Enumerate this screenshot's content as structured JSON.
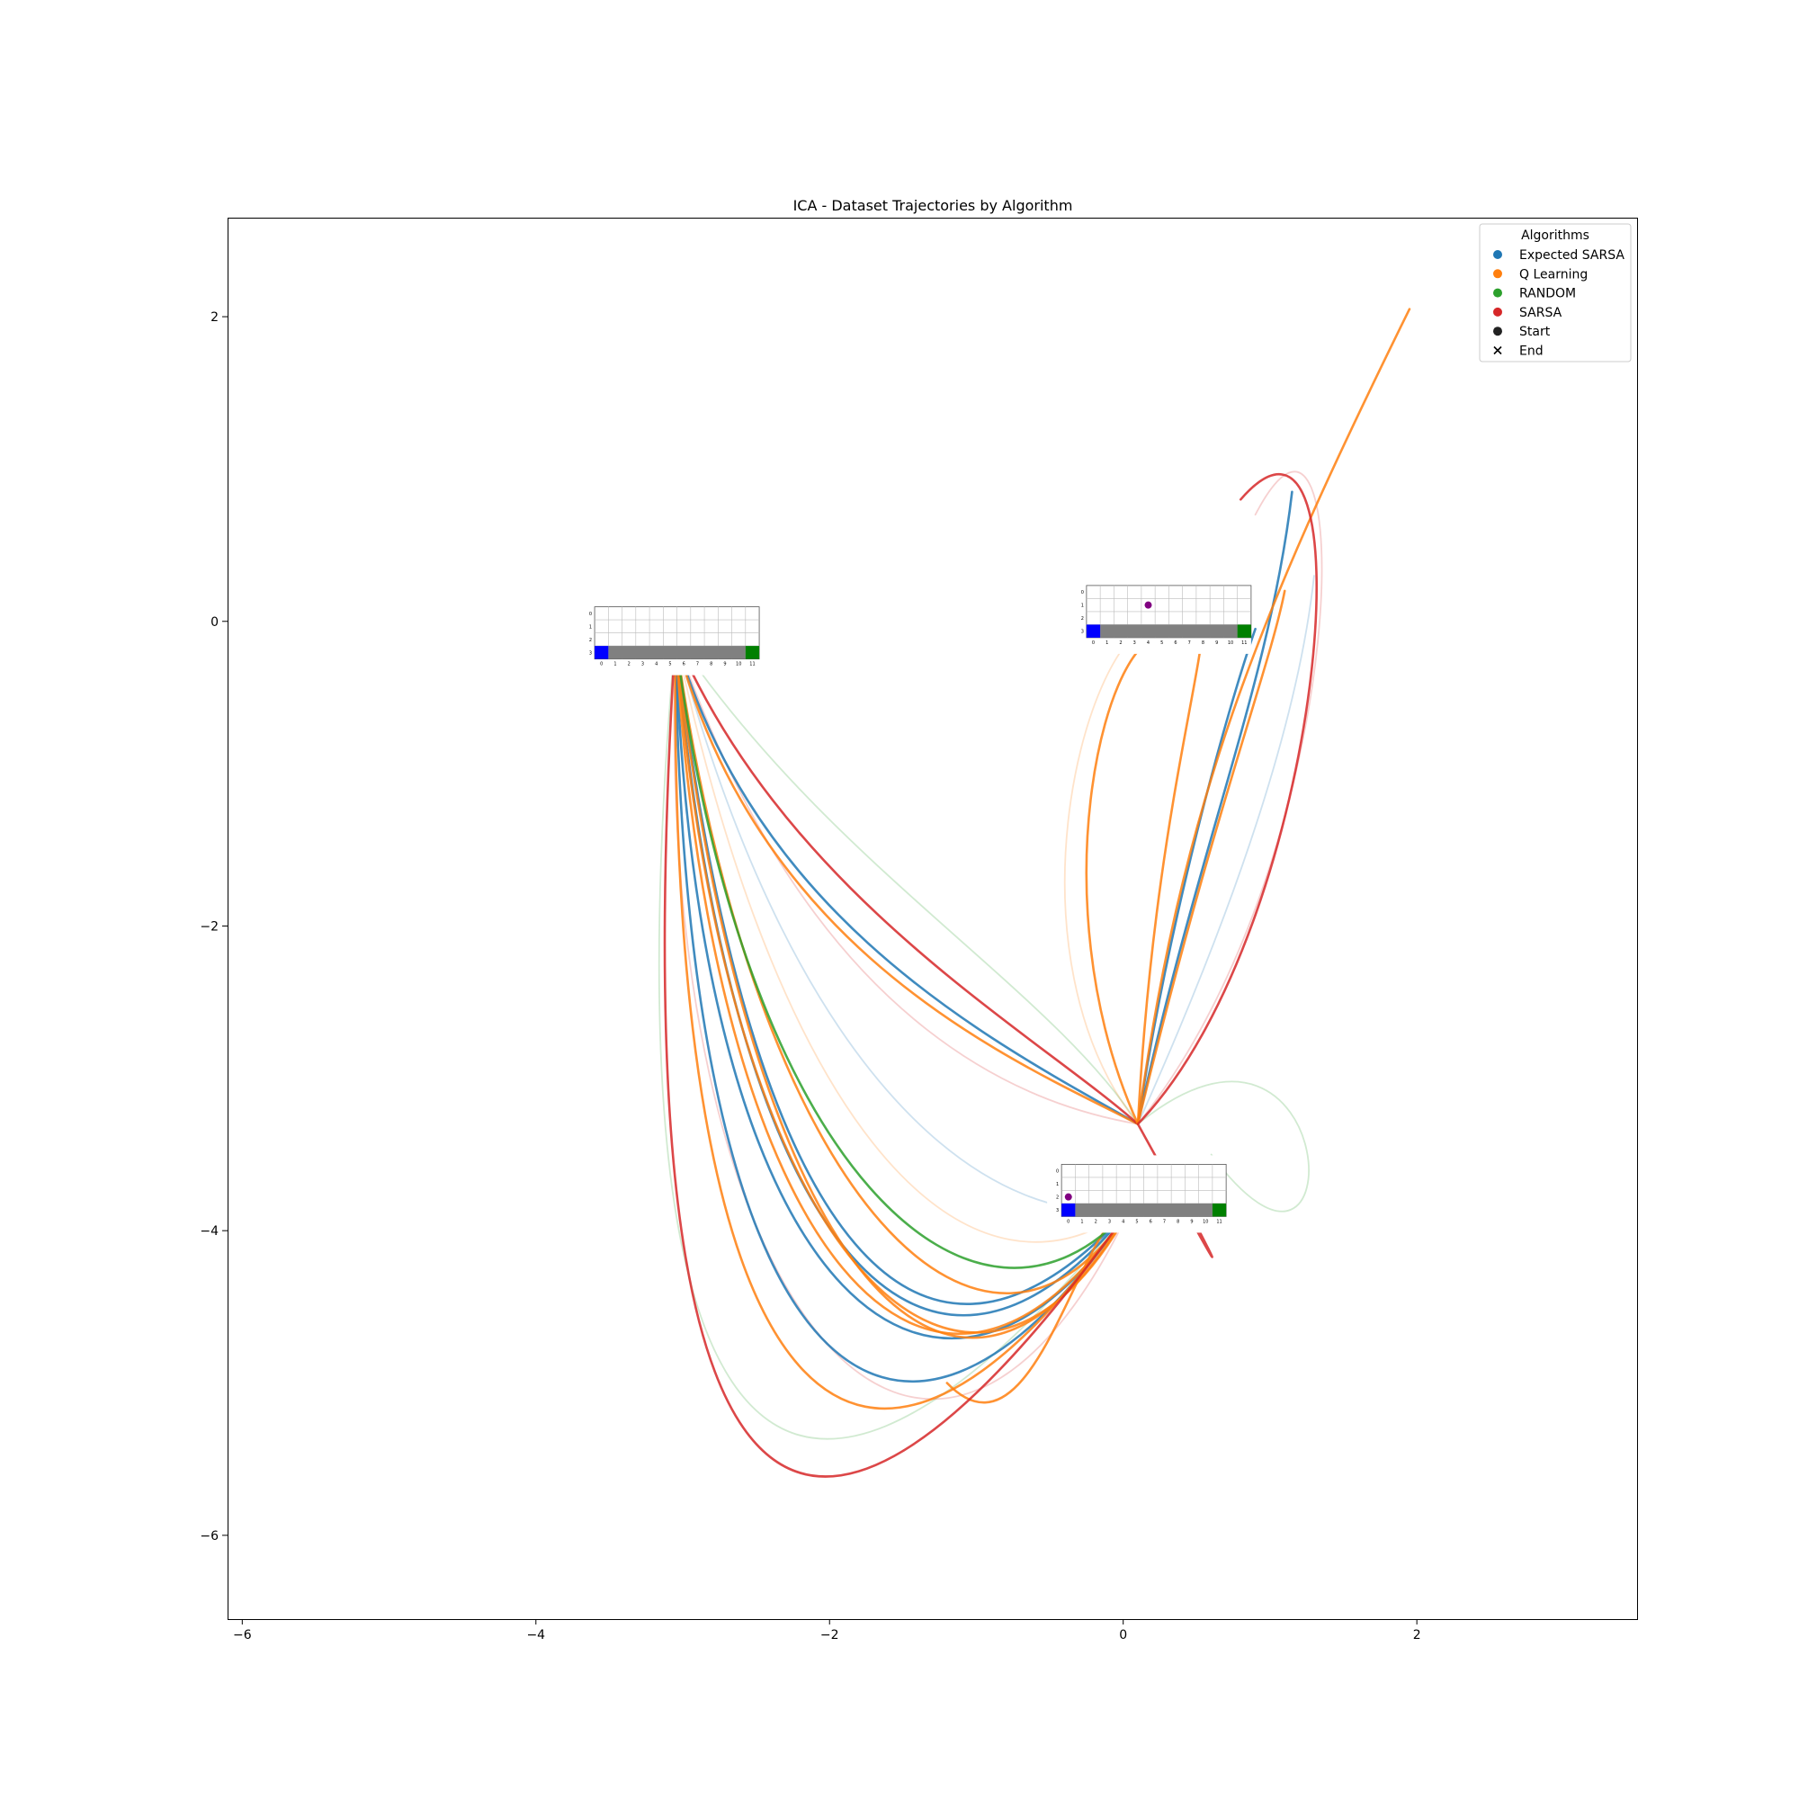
{
  "chart_data": {
    "type": "line",
    "title": "ICA - Dataset Trajectories by Algorithm",
    "xlabel": "",
    "ylabel": "",
    "xlim": [
      -6.1,
      3.5
    ],
    "ylim": [
      -6.55,
      2.65
    ],
    "x_ticks": [
      -6,
      -4,
      -2,
      0,
      2
    ],
    "y_ticks": [
      2,
      0,
      -2,
      -4,
      -6
    ],
    "x_tick_labels": [
      "−6",
      "−4",
      "−2",
      "0",
      "2"
    ],
    "y_tick_labels": [
      "2",
      "0",
      "−2",
      "−4",
      "−6"
    ],
    "grid": false,
    "legend": {
      "title": "Algorithms",
      "position": "top-right",
      "entries": [
        {
          "label": "Expected SARSA",
          "marker": "circle",
          "color": "#1f77b4"
        },
        {
          "label": "Q Learning",
          "marker": "circle",
          "color": "#ff7f0e"
        },
        {
          "label": "RANDOM",
          "marker": "circle",
          "color": "#2ca02c"
        },
        {
          "label": "SARSA",
          "marker": "circle",
          "color": "#d62728"
        },
        {
          "label": "Start",
          "marker": "circle",
          "color": "#222222"
        },
        {
          "label": "End",
          "marker": "x",
          "color": "#000000"
        }
      ]
    },
    "anchors": [
      {
        "name": "left-hub",
        "x": -3.05,
        "y": -0.1
      },
      {
        "name": "center-hub",
        "x": 0.1,
        "y": -3.3
      },
      {
        "name": "lower-hub",
        "x": 0.05,
        "y": -3.85
      },
      {
        "name": "upper-hub",
        "x": 0.9,
        "y": -0.05
      }
    ],
    "series": [
      {
        "color": "#1f77b4",
        "strong": true,
        "points": [
          [
            -3.05,
            -0.1
          ],
          [
            -2.7,
            -4.0
          ],
          [
            -1.4,
            -5.6
          ],
          [
            0.05,
            -3.85
          ]
        ]
      },
      {
        "color": "#1f77b4",
        "strong": true,
        "points": [
          [
            -3.05,
            -0.1
          ],
          [
            -2.9,
            -4.6
          ],
          [
            -1.2,
            -5.7
          ],
          [
            0.05,
            -3.85
          ]
        ]
      },
      {
        "color": "#1f77b4",
        "strong": true,
        "points": [
          [
            -3.05,
            -0.1
          ],
          [
            -2.6,
            -3.8
          ],
          [
            -1.5,
            -5.5
          ],
          [
            0.05,
            -3.85
          ]
        ]
      },
      {
        "color": "#1f77b4",
        "strong": true,
        "points": [
          [
            -3.05,
            -0.1
          ],
          [
            -3.0,
            -4.9
          ],
          [
            -1.6,
            -6.2
          ],
          [
            0.05,
            -3.85
          ]
        ]
      },
      {
        "color": "#1f77b4",
        "strong": true,
        "points": [
          [
            -3.05,
            -0.1
          ],
          [
            -2.5,
            -2.0
          ],
          [
            -0.8,
            -2.8
          ],
          [
            0.1,
            -3.3
          ]
        ]
      },
      {
        "color": "#ff7f0e",
        "strong": true,
        "points": [
          [
            -3.05,
            -0.1
          ],
          [
            -2.8,
            -4.2
          ],
          [
            -1.3,
            -5.8
          ],
          [
            0.05,
            -3.85
          ]
        ]
      },
      {
        "color": "#ff7f0e",
        "strong": true,
        "points": [
          [
            -3.05,
            -0.1
          ],
          [
            -2.7,
            -4.4
          ],
          [
            -1.0,
            -5.7
          ],
          [
            0.05,
            -3.85
          ]
        ]
      },
      {
        "color": "#ff7f0e",
        "strong": true,
        "points": [
          [
            -3.05,
            -0.1
          ],
          [
            -3.1,
            -5.3
          ],
          [
            -1.8,
            -6.4
          ],
          [
            0.05,
            -3.85
          ]
        ]
      },
      {
        "color": "#ff7f0e",
        "strong": true,
        "points": [
          [
            -3.05,
            -0.1
          ],
          [
            -2.6,
            -4.1
          ],
          [
            -1.2,
            -5.9
          ],
          [
            0.05,
            -3.85
          ]
        ]
      },
      {
        "color": "#ff7f0e",
        "strong": true,
        "points": [
          [
            -3.05,
            -0.1
          ],
          [
            -2.5,
            -3.9
          ],
          [
            -0.9,
            -5.3
          ],
          [
            0.05,
            -3.85
          ]
        ]
      },
      {
        "color": "#ff7f0e",
        "strong": true,
        "points": [
          [
            -3.05,
            -0.1
          ],
          [
            -2.5,
            -2.2
          ],
          [
            -0.7,
            -2.9
          ],
          [
            0.1,
            -3.3
          ]
        ]
      },
      {
        "color": "#ff7f0e",
        "strong": true,
        "points": [
          [
            0.05,
            -3.85
          ],
          [
            -0.3,
            -3.9
          ],
          [
            -0.6,
            -5.6
          ],
          [
            -1.2,
            -5.0
          ]
        ]
      },
      {
        "color": "#d62728",
        "strong": true,
        "points": [
          [
            -3.05,
            -0.1
          ],
          [
            -3.4,
            -5.5
          ],
          [
            -2.5,
            -7.3
          ],
          [
            0.05,
            -3.85
          ]
        ]
      },
      {
        "color": "#d62728",
        "strong": true,
        "points": [
          [
            -3.05,
            -0.1
          ],
          [
            -2.3,
            -1.8
          ],
          [
            -0.6,
            -2.7
          ],
          [
            0.1,
            -3.3
          ]
        ]
      },
      {
        "color": "#d62728",
        "strong": true,
        "points": [
          [
            0.1,
            -3.3
          ],
          [
            0.5,
            -4.0
          ],
          [
            0.9,
            -4.7
          ],
          [
            0.3,
            -3.6
          ]
        ]
      },
      {
        "color": "#2ca02c",
        "strong": true,
        "points": [
          [
            -3.05,
            -0.1
          ],
          [
            -2.6,
            -3.6
          ],
          [
            -1.0,
            -5.0
          ],
          [
            0.05,
            -3.85
          ]
        ]
      },
      {
        "color": "#1f77b4",
        "strong": true,
        "points": [
          [
            0.1,
            -3.3
          ],
          [
            0.3,
            -2.0
          ],
          [
            0.7,
            -0.6
          ],
          [
            0.9,
            -0.05
          ]
        ]
      },
      {
        "color": "#1f77b4",
        "strong": true,
        "points": [
          [
            0.1,
            -3.3
          ],
          [
            0.5,
            -1.5
          ],
          [
            1.0,
            -0.4
          ],
          [
            1.15,
            0.85
          ]
        ]
      },
      {
        "color": "#ff7f0e",
        "strong": true,
        "points": [
          [
            0.1,
            -3.3
          ],
          [
            -0.6,
            -1.8
          ],
          [
            -0.1,
            0.0
          ],
          [
            0.3,
            -0.1
          ]
        ]
      },
      {
        "color": "#ff7f0e",
        "strong": true,
        "points": [
          [
            0.1,
            -3.3
          ],
          [
            0.4,
            -1.2
          ],
          [
            0.9,
            0.0
          ],
          [
            1.95,
            2.05
          ]
        ]
      },
      {
        "color": "#ff7f0e",
        "strong": true,
        "points": [
          [
            0.1,
            -3.3
          ],
          [
            0.6,
            -1.3
          ],
          [
            1.0,
            -0.3
          ],
          [
            1.1,
            0.2
          ]
        ]
      },
      {
        "color": "#ff7f0e",
        "strong": true,
        "points": [
          [
            0.1,
            -3.3
          ],
          [
            0.2,
            -1.5
          ],
          [
            0.5,
            -0.5
          ],
          [
            0.55,
            0.0
          ]
        ]
      },
      {
        "color": "#d62728",
        "strong": true,
        "points": [
          [
            0.1,
            -3.3
          ],
          [
            1.4,
            -2.0
          ],
          [
            1.7,
            1.8
          ],
          [
            0.8,
            0.8
          ]
        ]
      },
      {
        "color": "#1f77b4",
        "strong": false,
        "points": [
          [
            -3.05,
            -0.1
          ],
          [
            -2.2,
            -3.2
          ],
          [
            -0.8,
            -4.0
          ],
          [
            0.05,
            -3.85
          ]
        ]
      },
      {
        "color": "#ff7f0e",
        "strong": false,
        "points": [
          [
            -3.05,
            -0.1
          ],
          [
            -2.3,
            -3.5
          ],
          [
            -1.0,
            -4.6
          ],
          [
            0.05,
            -3.85
          ]
        ]
      },
      {
        "color": "#2ca02c",
        "strong": false,
        "points": [
          [
            -3.05,
            -0.1
          ],
          [
            -3.5,
            -5.0
          ],
          [
            -2.6,
            -7.0
          ],
          [
            0.05,
            -3.85
          ]
        ]
      },
      {
        "color": "#2ca02c",
        "strong": false,
        "points": [
          [
            -3.05,
            -0.1
          ],
          [
            -2.0,
            -1.6
          ],
          [
            -0.5,
            -2.4
          ],
          [
            0.1,
            -3.3
          ]
        ]
      },
      {
        "color": "#2ca02c",
        "strong": false,
        "points": [
          [
            0.1,
            -3.3
          ],
          [
            1.5,
            -2.2
          ],
          [
            1.6,
            -4.8
          ],
          [
            0.6,
            -3.5
          ]
        ]
      },
      {
        "color": "#d62728",
        "strong": false,
        "points": [
          [
            -3.05,
            -0.1
          ],
          [
            -2.1,
            -2.8
          ],
          [
            -0.5,
            -3.2
          ],
          [
            0.1,
            -3.3
          ]
        ]
      },
      {
        "color": "#d62728",
        "strong": false,
        "points": [
          [
            -3.05,
            -0.1
          ],
          [
            -3.2,
            -4.6
          ],
          [
            -1.3,
            -6.6
          ],
          [
            0.05,
            -3.85
          ]
        ]
      },
      {
        "color": "#d62728",
        "strong": false,
        "points": [
          [
            0.1,
            -3.3
          ],
          [
            1.6,
            -1.5
          ],
          [
            1.6,
            2.0
          ],
          [
            0.9,
            0.7
          ]
        ]
      },
      {
        "color": "#ff7f0e",
        "strong": false,
        "points": [
          [
            0.1,
            -3.3
          ],
          [
            -0.8,
            -2.2
          ],
          [
            -0.3,
            -0.2
          ],
          [
            0.2,
            0.0
          ]
        ]
      },
      {
        "color": "#1f77b4",
        "strong": false,
        "points": [
          [
            0.1,
            -3.3
          ],
          [
            0.8,
            -1.8
          ],
          [
            1.2,
            -0.6
          ],
          [
            1.3,
            0.3
          ]
        ]
      }
    ],
    "insets": [
      {
        "name": "left",
        "x": -3.6,
        "y": 0.06,
        "cols": 12,
        "rows": 4,
        "col_labels": [
          "0",
          "1",
          "2",
          "3",
          "4",
          "5",
          "6",
          "7",
          "8",
          "9",
          "10",
          "11"
        ],
        "row_labels": [
          "0",
          "1",
          "2",
          "3"
        ],
        "start_color": "#0000ff",
        "goal_color": "#008000",
        "cliff_color": "#808080",
        "agent": null
      },
      {
        "name": "upper",
        "x": -0.25,
        "y": 0.2,
        "cols": 12,
        "rows": 4,
        "col_labels": [
          "0",
          "1",
          "2",
          "3",
          "4",
          "5",
          "6",
          "7",
          "8",
          "9",
          "10",
          "11"
        ],
        "row_labels": [
          "0",
          "1",
          "2",
          "3"
        ],
        "start_color": "#0000ff",
        "goal_color": "#008000",
        "cliff_color": "#808080",
        "agent": {
          "col": 4,
          "row": 1,
          "color": "#800080"
        }
      },
      {
        "name": "lower",
        "x": -0.42,
        "y": -3.6,
        "cols": 12,
        "rows": 4,
        "col_labels": [
          "0",
          "1",
          "2",
          "3",
          "4",
          "5",
          "6",
          "7",
          "8",
          "9",
          "10",
          "11"
        ],
        "row_labels": [
          "0",
          "1",
          "2",
          "3"
        ],
        "start_color": "#0000ff",
        "goal_color": "#008000",
        "cliff_color": "#808080",
        "agent": {
          "col": 0,
          "row": 2,
          "color": "#800080"
        }
      }
    ]
  }
}
